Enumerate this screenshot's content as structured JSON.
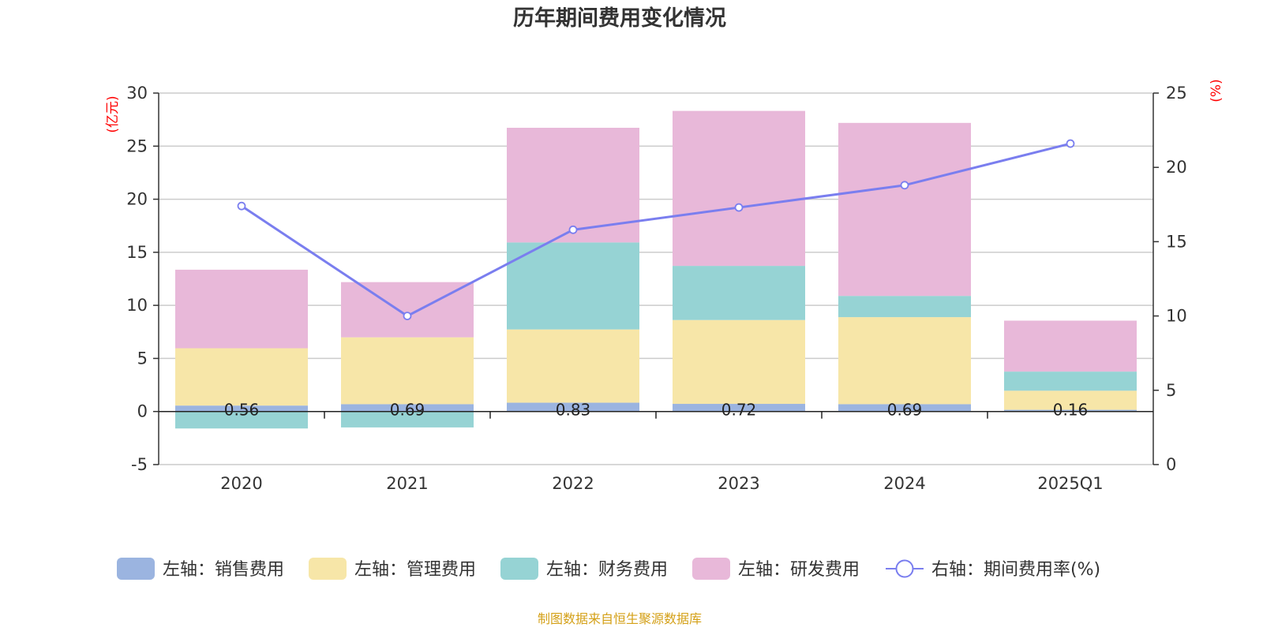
{
  "chart_data": {
    "type": "bar",
    "title": "历年期间费用变化情况",
    "categories": [
      "2020",
      "2021",
      "2022",
      "2023",
      "2024",
      "2025Q1"
    ],
    "left_axis": {
      "unit": "(亿元)",
      "range": [
        -5,
        30
      ],
      "ticks": [
        "30",
        "25",
        "20",
        "15",
        "10",
        "5",
        "0",
        "-5"
      ]
    },
    "right_axis": {
      "unit": "(%)",
      "range": [
        0,
        25
      ],
      "ticks": [
        "25",
        "20",
        "15",
        "10",
        "5",
        "0"
      ]
    },
    "series": [
      {
        "name": "左轴：销售费用",
        "axis": "left",
        "color": "#9bb4e0",
        "values": [
          0.56,
          0.69,
          0.83,
          0.72,
          0.69,
          0.16
        ],
        "labels": [
          "0.56",
          "0.69",
          "0.83",
          "0.72",
          "0.69",
          "0.16"
        ]
      },
      {
        "name": "左轴：管理费用",
        "axis": "left",
        "color": "#f7e6a8",
        "values": [
          5.4,
          6.3,
          6.9,
          7.9,
          8.2,
          1.8
        ]
      },
      {
        "name": "左轴：财务费用",
        "axis": "left",
        "color": "#96d3d4",
        "values": [
          -1.6,
          -1.5,
          8.2,
          5.1,
          2.0,
          1.8
        ]
      },
      {
        "name": "左轴：研发费用",
        "axis": "left",
        "color": "#e8b8d9",
        "values": [
          7.4,
          5.2,
          10.8,
          14.6,
          16.3,
          4.8
        ]
      },
      {
        "name": "右轴：期间费用率(%)",
        "axis": "right",
        "type": "line",
        "color": "#7a7eef",
        "values": [
          17.4,
          10.0,
          15.8,
          17.3,
          18.8,
          21.6
        ]
      }
    ],
    "grid": true,
    "legend_position": "bottom"
  },
  "source": "制图数据来自恒生聚源数据库"
}
